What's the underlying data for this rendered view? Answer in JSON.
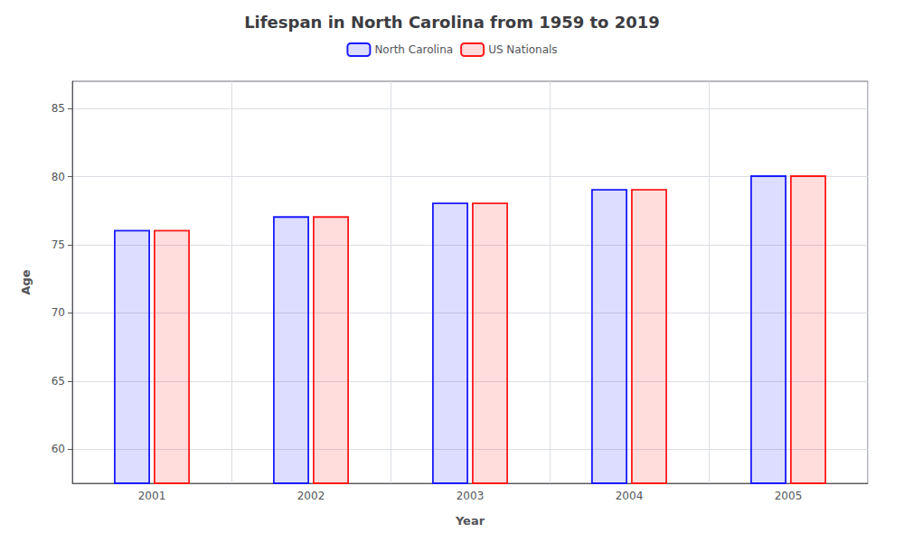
{
  "chart_data": {
    "type": "bar",
    "title": "Lifespan in North Carolina from 1959 to 2019",
    "x_label": "Year",
    "y_label": "Age",
    "categories": [
      "2001",
      "2002",
      "2003",
      "2004",
      "2005"
    ],
    "series": [
      {
        "name": "North Carolina",
        "color": "#1a1aff",
        "values": [
          76.1,
          77.1,
          78.1,
          79.1,
          80.1
        ]
      },
      {
        "name": "US Nationals",
        "color": "#ff1a1a",
        "values": [
          76.1,
          77.1,
          78.1,
          79.1,
          80.1
        ]
      }
    ],
    "ylim": [
      57.5,
      87
    ],
    "yticks": [
      60,
      65,
      70,
      75,
      80,
      85
    ],
    "grid": true,
    "legend": "top"
  }
}
